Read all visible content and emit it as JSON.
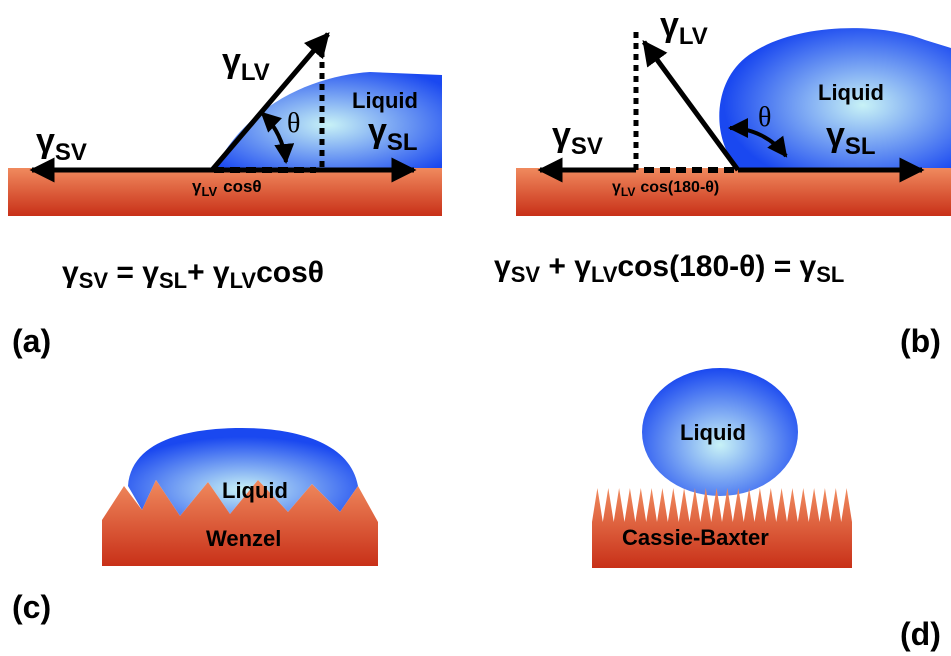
{
  "gamma": "γ",
  "theta": "θ",
  "panel_a": {
    "label": "(a)",
    "liquid_label": "Liquid",
    "sub_sv": "SV",
    "sub_lv": "LV",
    "sub_sl": "SL",
    "cos_label": "cosθ",
    "eq": {
      "sv": "SV",
      "eq1": " = ",
      "sl": "SL",
      "plus": "+ ",
      "lv": "LV",
      "tail": "cosθ"
    }
  },
  "panel_b": {
    "label": "(b)",
    "liquid_label": "Liquid",
    "sub_sv": "SV",
    "sub_lv": "LV",
    "sub_sl": "SL",
    "cos_label": "cos(180-θ)",
    "eq": {
      "sv": "SV",
      "plus": " + ",
      "lv": "LV",
      "mid": "cos(180-θ) = ",
      "sl": "SL"
    }
  },
  "panel_c": {
    "label": "(c)",
    "liquid_label": "Liquid",
    "substrate_label": "Wenzel"
  },
  "panel_d": {
    "label": "(d)",
    "liquid_label": "Liquid",
    "substrate_label": "Cassie-Baxter"
  },
  "colors": {
    "substrate_top": "#f08a5e",
    "substrate_bottom": "#c83018",
    "liquid_center": "#c8f2f6",
    "liquid_edge": "#1a48f0"
  }
}
